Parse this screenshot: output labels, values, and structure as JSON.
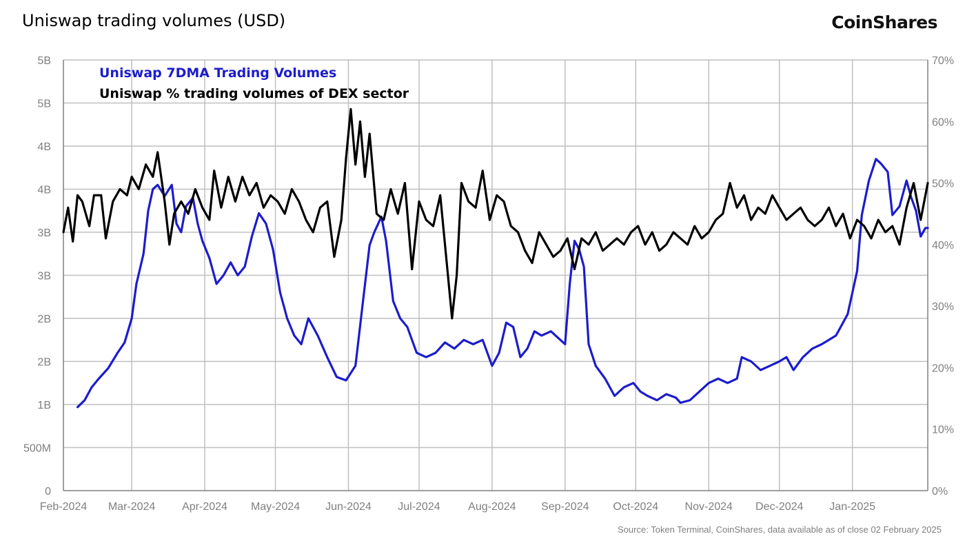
{
  "header": {
    "title": "Uniswap trading volumes (USD)",
    "brand": "CoinShares"
  },
  "footer": {
    "source": "Source: Token Terminal, CoinShares, data available as of close 02 February 2025"
  },
  "colors": {
    "volume": "#1c1ccc",
    "share": "#000000",
    "grid": "#bfbfbf",
    "axis_text": "#7f7f7f"
  },
  "chart_data": {
    "type": "line",
    "title": "Uniswap trading volumes (USD)",
    "legend": [
      "Uniswap 7DMA Trading Volumes",
      "Uniswap % trading volumes of DEX sector"
    ],
    "legend_position": "top-left",
    "grid": true,
    "x_range": [
      "2024-02-01",
      "2025-02-02"
    ],
    "x_tick_labels": [
      "Feb-2024",
      "Mar-2024",
      "Apr-2024",
      "May-2024",
      "Jun-2024",
      "Jul-2024",
      "Aug-2024",
      "Sep-2024",
      "Oct-2024",
      "Nov-2024",
      "Dec-2024",
      "Jan-2025"
    ],
    "left_axis": {
      "range": [
        0,
        5
      ],
      "tick_labels": [
        "0",
        "500M",
        "1B",
        "2B",
        "2B",
        "3B",
        "3B",
        "4B",
        "4B",
        "5B",
        "5B"
      ],
      "unit": "billion USD"
    },
    "right_axis": {
      "range": [
        0,
        70
      ],
      "tick_labels": [
        "0%",
        "10%",
        "20%",
        "30%",
        "40%",
        "50%",
        "60%",
        "70%"
      ],
      "unit": "percent"
    },
    "series": [
      {
        "name": "Uniswap 7DMA Trading Volumes",
        "axis": "left",
        "points": [
          [
            "2024-02-07",
            0.97
          ],
          [
            "2024-02-10",
            1.05
          ],
          [
            "2024-02-13",
            1.2
          ],
          [
            "2024-02-16",
            1.3
          ],
          [
            "2024-02-20",
            1.42
          ],
          [
            "2024-02-24",
            1.6
          ],
          [
            "2024-02-27",
            1.72
          ],
          [
            "2024-03-01",
            2.0
          ],
          [
            "2024-03-03",
            2.4
          ],
          [
            "2024-03-06",
            2.75
          ],
          [
            "2024-03-08",
            3.25
          ],
          [
            "2024-03-10",
            3.5
          ],
          [
            "2024-03-12",
            3.55
          ],
          [
            "2024-03-15",
            3.42
          ],
          [
            "2024-03-18",
            3.55
          ],
          [
            "2024-03-20",
            3.1
          ],
          [
            "2024-03-22",
            3.0
          ],
          [
            "2024-03-24",
            3.3
          ],
          [
            "2024-03-27",
            3.4
          ],
          [
            "2024-03-29",
            3.1
          ],
          [
            "2024-03-31",
            2.9
          ],
          [
            "2024-04-03",
            2.7
          ],
          [
            "2024-04-06",
            2.4
          ],
          [
            "2024-04-09",
            2.5
          ],
          [
            "2024-04-12",
            2.65
          ],
          [
            "2024-04-15",
            2.5
          ],
          [
            "2024-04-18",
            2.6
          ],
          [
            "2024-04-21",
            2.95
          ],
          [
            "2024-04-24",
            3.22
          ],
          [
            "2024-04-27",
            3.1
          ],
          [
            "2024-04-30",
            2.8
          ],
          [
            "2024-05-03",
            2.3
          ],
          [
            "2024-05-06",
            2.0
          ],
          [
            "2024-05-09",
            1.8
          ],
          [
            "2024-05-12",
            1.7
          ],
          [
            "2024-05-15",
            2.0
          ],
          [
            "2024-05-19",
            1.8
          ],
          [
            "2024-05-23",
            1.55
          ],
          [
            "2024-05-27",
            1.32
          ],
          [
            "2024-05-31",
            1.28
          ],
          [
            "2024-06-04",
            1.45
          ],
          [
            "2024-06-07",
            2.15
          ],
          [
            "2024-06-10",
            2.85
          ],
          [
            "2024-06-12",
            3.0
          ],
          [
            "2024-06-15",
            3.18
          ],
          [
            "2024-06-17",
            2.9
          ],
          [
            "2024-06-20",
            2.2
          ],
          [
            "2024-06-23",
            2.0
          ],
          [
            "2024-06-26",
            1.9
          ],
          [
            "2024-06-30",
            1.6
          ],
          [
            "2024-07-04",
            1.55
          ],
          [
            "2024-07-08",
            1.6
          ],
          [
            "2024-07-12",
            1.72
          ],
          [
            "2024-07-16",
            1.65
          ],
          [
            "2024-07-20",
            1.75
          ],
          [
            "2024-07-24",
            1.7
          ],
          [
            "2024-07-28",
            1.75
          ],
          [
            "2024-08-01",
            1.45
          ],
          [
            "2024-08-04",
            1.6
          ],
          [
            "2024-08-07",
            1.95
          ],
          [
            "2024-08-10",
            1.9
          ],
          [
            "2024-08-13",
            1.55
          ],
          [
            "2024-08-16",
            1.65
          ],
          [
            "2024-08-19",
            1.85
          ],
          [
            "2024-08-22",
            1.8
          ],
          [
            "2024-08-26",
            1.85
          ],
          [
            "2024-08-30",
            1.75
          ],
          [
            "2024-09-01",
            1.7
          ],
          [
            "2024-09-03",
            2.4
          ],
          [
            "2024-09-05",
            2.9
          ],
          [
            "2024-09-07",
            2.8
          ],
          [
            "2024-09-09",
            2.6
          ],
          [
            "2024-09-11",
            1.7
          ],
          [
            "2024-09-14",
            1.45
          ],
          [
            "2024-09-18",
            1.3
          ],
          [
            "2024-09-22",
            1.1
          ],
          [
            "2024-09-26",
            1.2
          ],
          [
            "2024-09-30",
            1.25
          ],
          [
            "2024-10-03",
            1.15
          ],
          [
            "2024-10-06",
            1.1
          ],
          [
            "2024-10-10",
            1.05
          ],
          [
            "2024-10-14",
            1.12
          ],
          [
            "2024-10-18",
            1.08
          ],
          [
            "2024-10-20",
            1.02
          ],
          [
            "2024-10-24",
            1.05
          ],
          [
            "2024-10-28",
            1.15
          ],
          [
            "2024-11-01",
            1.25
          ],
          [
            "2024-11-05",
            1.3
          ],
          [
            "2024-11-09",
            1.25
          ],
          [
            "2024-11-13",
            1.3
          ],
          [
            "2024-11-15",
            1.55
          ],
          [
            "2024-11-19",
            1.5
          ],
          [
            "2024-11-23",
            1.4
          ],
          [
            "2024-11-27",
            1.45
          ],
          [
            "2024-12-01",
            1.5
          ],
          [
            "2024-12-04",
            1.55
          ],
          [
            "2024-12-07",
            1.4
          ],
          [
            "2024-12-11",
            1.55
          ],
          [
            "2024-12-15",
            1.65
          ],
          [
            "2024-12-19",
            1.7
          ],
          [
            "2024-12-22",
            1.75
          ],
          [
            "2024-12-25",
            1.8
          ],
          [
            "2024-12-26",
            1.85
          ],
          [
            "2024-12-30",
            2.05
          ],
          [
            "2025-01-03",
            2.55
          ],
          [
            "2025-01-05",
            3.2
          ],
          [
            "2025-01-08",
            3.6
          ],
          [
            "2025-01-11",
            3.85
          ],
          [
            "2025-01-13",
            3.8
          ],
          [
            "2025-01-16",
            3.7
          ],
          [
            "2025-01-18",
            3.2
          ],
          [
            "2025-01-21",
            3.3
          ],
          [
            "2025-01-24",
            3.6
          ],
          [
            "2025-01-26",
            3.4
          ],
          [
            "2025-01-28",
            3.25
          ],
          [
            "2025-01-30",
            2.95
          ],
          [
            "2025-02-01",
            3.05
          ],
          [
            "2025-02-02",
            3.05
          ]
        ]
      },
      {
        "name": "Uniswap % trading volumes of DEX sector",
        "axis": "right",
        "points": [
          [
            "2024-02-01",
            42
          ],
          [
            "2024-02-03",
            46
          ],
          [
            "2024-02-05",
            40.5
          ],
          [
            "2024-02-07",
            48
          ],
          [
            "2024-02-09",
            47
          ],
          [
            "2024-02-12",
            43
          ],
          [
            "2024-02-14",
            48
          ],
          [
            "2024-02-17",
            48
          ],
          [
            "2024-02-19",
            41
          ],
          [
            "2024-02-22",
            47
          ],
          [
            "2024-02-25",
            49
          ],
          [
            "2024-02-28",
            48
          ],
          [
            "2024-03-01",
            51
          ],
          [
            "2024-03-04",
            49
          ],
          [
            "2024-03-07",
            53
          ],
          [
            "2024-03-10",
            51
          ],
          [
            "2024-03-12",
            55
          ],
          [
            "2024-03-15",
            47
          ],
          [
            "2024-03-17",
            40
          ],
          [
            "2024-03-19",
            45
          ],
          [
            "2024-03-22",
            47
          ],
          [
            "2024-03-25",
            45
          ],
          [
            "2024-03-28",
            49
          ],
          [
            "2024-03-31",
            46
          ],
          [
            "2024-04-03",
            44
          ],
          [
            "2024-04-05",
            52
          ],
          [
            "2024-04-08",
            46
          ],
          [
            "2024-04-11",
            51
          ],
          [
            "2024-04-14",
            47
          ],
          [
            "2024-04-17",
            51
          ],
          [
            "2024-04-20",
            48
          ],
          [
            "2024-04-23",
            50
          ],
          [
            "2024-04-26",
            46
          ],
          [
            "2024-04-29",
            48
          ],
          [
            "2024-05-02",
            47
          ],
          [
            "2024-05-05",
            45
          ],
          [
            "2024-05-08",
            49
          ],
          [
            "2024-05-11",
            47
          ],
          [
            "2024-05-14",
            44
          ],
          [
            "2024-05-17",
            42
          ],
          [
            "2024-05-20",
            46
          ],
          [
            "2024-05-23",
            47
          ],
          [
            "2024-05-26",
            38
          ],
          [
            "2024-05-29",
            44
          ],
          [
            "2024-05-31",
            54
          ],
          [
            "2024-06-02",
            62
          ],
          [
            "2024-06-04",
            53
          ],
          [
            "2024-06-06",
            60
          ],
          [
            "2024-06-08",
            51
          ],
          [
            "2024-06-10",
            58
          ],
          [
            "2024-06-13",
            45
          ],
          [
            "2024-06-16",
            44
          ],
          [
            "2024-06-19",
            49
          ],
          [
            "2024-06-22",
            45
          ],
          [
            "2024-06-25",
            50
          ],
          [
            "2024-06-28",
            36
          ],
          [
            "2024-07-01",
            47
          ],
          [
            "2024-07-04",
            44
          ],
          [
            "2024-07-07",
            43
          ],
          [
            "2024-07-10",
            48
          ],
          [
            "2024-07-13",
            36
          ],
          [
            "2024-07-15",
            28
          ],
          [
            "2024-07-17",
            35
          ],
          [
            "2024-07-19",
            50
          ],
          [
            "2024-07-22",
            47
          ],
          [
            "2024-07-25",
            46
          ],
          [
            "2024-07-28",
            52
          ],
          [
            "2024-07-31",
            44
          ],
          [
            "2024-08-03",
            48
          ],
          [
            "2024-08-06",
            47
          ],
          [
            "2024-08-09",
            43
          ],
          [
            "2024-08-12",
            42
          ],
          [
            "2024-08-15",
            39
          ],
          [
            "2024-08-18",
            37
          ],
          [
            "2024-08-21",
            42
          ],
          [
            "2024-08-24",
            40
          ],
          [
            "2024-08-27",
            38
          ],
          [
            "2024-08-30",
            39
          ],
          [
            "2024-09-02",
            41
          ],
          [
            "2024-09-05",
            36
          ],
          [
            "2024-09-08",
            41
          ],
          [
            "2024-09-11",
            40
          ],
          [
            "2024-09-14",
            42
          ],
          [
            "2024-09-17",
            39
          ],
          [
            "2024-09-20",
            40
          ],
          [
            "2024-09-23",
            41
          ],
          [
            "2024-09-26",
            40
          ],
          [
            "2024-09-29",
            42
          ],
          [
            "2024-10-02",
            43
          ],
          [
            "2024-10-05",
            40
          ],
          [
            "2024-10-08",
            42
          ],
          [
            "2024-10-11",
            39
          ],
          [
            "2024-10-14",
            40
          ],
          [
            "2024-10-17",
            42
          ],
          [
            "2024-10-20",
            41
          ],
          [
            "2024-10-23",
            40
          ],
          [
            "2024-10-26",
            43
          ],
          [
            "2024-10-29",
            41
          ],
          [
            "2024-11-01",
            42
          ],
          [
            "2024-11-04",
            44
          ],
          [
            "2024-11-07",
            45
          ],
          [
            "2024-11-10",
            50
          ],
          [
            "2024-11-13",
            46
          ],
          [
            "2024-11-16",
            48
          ],
          [
            "2024-11-19",
            44
          ],
          [
            "2024-11-22",
            46
          ],
          [
            "2024-11-25",
            45
          ],
          [
            "2024-11-28",
            48
          ],
          [
            "2024-12-01",
            46
          ],
          [
            "2024-12-04",
            44
          ],
          [
            "2024-12-07",
            45
          ],
          [
            "2024-12-10",
            46
          ],
          [
            "2024-12-13",
            44
          ],
          [
            "2024-12-16",
            43
          ],
          [
            "2024-12-19",
            44
          ],
          [
            "2024-12-22",
            46
          ],
          [
            "2024-12-25",
            43
          ],
          [
            "2024-12-28",
            45
          ],
          [
            "2024-12-31",
            41
          ],
          [
            "2025-01-03",
            44
          ],
          [
            "2025-01-06",
            43
          ],
          [
            "2025-01-09",
            41
          ],
          [
            "2025-01-12",
            44
          ],
          [
            "2025-01-15",
            42
          ],
          [
            "2025-01-18",
            43
          ],
          [
            "2025-01-21",
            40
          ],
          [
            "2025-01-24",
            46
          ],
          [
            "2025-01-27",
            50
          ],
          [
            "2025-01-30",
            44
          ],
          [
            "2025-02-02",
            50
          ]
        ]
      }
    ]
  }
}
